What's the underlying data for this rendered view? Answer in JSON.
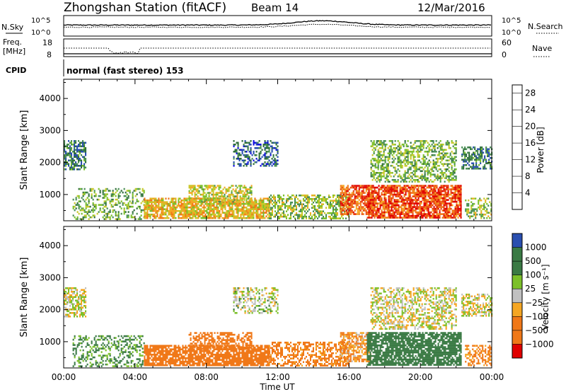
{
  "header": {
    "station": "Zhongshan Station (fitACF)",
    "beam": "Beam 14",
    "date": "12/Mar/2016"
  },
  "top_panels": {
    "nsky_label": "N.Sky",
    "nsearch_label": "N.Search",
    "noise_ticks": [
      "10^5",
      "10^0"
    ],
    "freq_label_line1": "Freq.",
    "freq_label_line2": "[MHz]",
    "freq_ticks": [
      "18",
      "8"
    ],
    "nave_label": "Nave",
    "nave_ticks": [
      "60",
      "0"
    ],
    "cpid_label": "CPID",
    "cpid_text": "normal (fast stereo) 153"
  },
  "time_axis": {
    "label": "Time UT",
    "ticks": [
      "00:00",
      "04:00",
      "08:00",
      "12:00",
      "16:00",
      "20:00",
      "00:00"
    ]
  },
  "colors": {
    "power": [
      "#1010e0",
      "#2a4fb0",
      "#2f6e3a",
      "#4a8f55",
      "#7cc02a",
      "#c8c82a",
      "#f5a623",
      "#f07818",
      "#e84010",
      "#e00000"
    ],
    "velocity": {
      "neg_strong": "#e00000",
      "neg_mid": "#f07818",
      "neg_low": "#f5a623",
      "zero": "#c0c0c0",
      "pos_low": "#7cc02a",
      "pos_mid": "#3a7a44",
      "pos_strong": "#2a4fb0"
    }
  },
  "chart_data": [
    {
      "type": "heatmap",
      "title": "Power",
      "xlabel": "Time UT",
      "ylabel": "Slant Range [km]",
      "x_ticks": [
        "00:00",
        "04:00",
        "08:00",
        "12:00",
        "16:00",
        "20:00",
        "00:00"
      ],
      "xlim_hours": [
        0,
        24
      ],
      "y_ticks": [
        1000,
        2000,
        3000,
        4000
      ],
      "ylim": [
        180,
        4600
      ],
      "colorbar": {
        "label": "Power [dB]",
        "ticks": [
          "4",
          "8",
          "12",
          "16",
          "20",
          "24",
          "28"
        ],
        "range": [
          0,
          30
        ]
      },
      "regions": [
        {
          "t0": 0.0,
          "t1": 1.2,
          "r0": 1800,
          "r1": 2700,
          "value": 8,
          "density": 0.65
        },
        {
          "t0": 0.5,
          "t1": 4.5,
          "r0": 250,
          "r1": 1200,
          "value": 12,
          "density": 0.35
        },
        {
          "t0": 4.5,
          "t1": 11.5,
          "r0": 250,
          "r1": 900,
          "value": 18,
          "density": 0.8
        },
        {
          "t0": 7.0,
          "t1": 10.5,
          "r0": 800,
          "r1": 1300,
          "value": 16,
          "density": 0.55
        },
        {
          "t0": 9.5,
          "t1": 12.0,
          "r0": 1900,
          "r1": 2700,
          "value": 6,
          "density": 0.45
        },
        {
          "t0": 11.5,
          "t1": 16.0,
          "r0": 250,
          "r1": 1000,
          "value": 14,
          "density": 0.55
        },
        {
          "t0": 15.5,
          "t1": 17.2,
          "r0": 400,
          "r1": 1300,
          "value": 24,
          "density": 0.7
        },
        {
          "t0": 17.0,
          "t1": 22.3,
          "r0": 300,
          "r1": 1300,
          "value": 25,
          "density": 0.8
        },
        {
          "t0": 17.2,
          "t1": 22.0,
          "r0": 1400,
          "r1": 2700,
          "value": 13,
          "density": 0.5
        },
        {
          "t0": 22.3,
          "t1": 24.0,
          "r0": 1800,
          "r1": 2500,
          "value": 8,
          "density": 0.55
        },
        {
          "t0": 22.5,
          "t1": 24.0,
          "r0": 250,
          "r1": 900,
          "value": 14,
          "density": 0.45
        }
      ]
    },
    {
      "type": "heatmap",
      "title": "Velocity",
      "xlabel": "Time UT",
      "ylabel": "Slant Range [km]",
      "x_ticks": [
        "00:00",
        "04:00",
        "08:00",
        "12:00",
        "16:00",
        "20:00",
        "00:00"
      ],
      "xlim_hours": [
        0,
        24
      ],
      "y_ticks": [
        1000,
        2000,
        3000,
        4000
      ],
      "ylim": [
        180,
        4600
      ],
      "colorbar": {
        "label": "Velocity [m s⁻¹]",
        "ticks": [
          "1000",
          "500",
          "100",
          "25",
          "−25",
          "−100",
          "−500",
          "−1000"
        ]
      },
      "regions": [
        {
          "t0": 0.0,
          "t1": 1.2,
          "r0": 1800,
          "r1": 2700,
          "value": 0,
          "density": 0.6
        },
        {
          "t0": 0.5,
          "t1": 4.5,
          "r0": 250,
          "r1": 1200,
          "value": 200,
          "density": 0.35
        },
        {
          "t0": 4.5,
          "t1": 11.5,
          "r0": 250,
          "r1": 900,
          "value": -300,
          "density": 0.8
        },
        {
          "t0": 7.0,
          "t1": 10.5,
          "r0": 800,
          "r1": 1300,
          "value": -400,
          "density": 0.55
        },
        {
          "t0": 9.5,
          "t1": 12.0,
          "r0": 1900,
          "r1": 2700,
          "value": 50,
          "density": 0.4
        },
        {
          "t0": 11.5,
          "t1": 16.0,
          "r0": 250,
          "r1": 1000,
          "value": -250,
          "density": 0.55
        },
        {
          "t0": 15.5,
          "t1": 17.2,
          "r0": 400,
          "r1": 1300,
          "value": -150,
          "density": 0.65
        },
        {
          "t0": 17.0,
          "t1": 22.3,
          "r0": 300,
          "r1": 1300,
          "value": 300,
          "density": 0.8
        },
        {
          "t0": 17.2,
          "t1": 22.0,
          "r0": 1400,
          "r1": 2700,
          "value": 0,
          "density": 0.5
        },
        {
          "t0": 22.3,
          "t1": 24.0,
          "r0": 1800,
          "r1": 2500,
          "value": 0,
          "density": 0.55
        },
        {
          "t0": 22.5,
          "t1": 24.0,
          "r0": 250,
          "r1": 900,
          "value": -200,
          "density": 0.45
        }
      ]
    }
  ]
}
